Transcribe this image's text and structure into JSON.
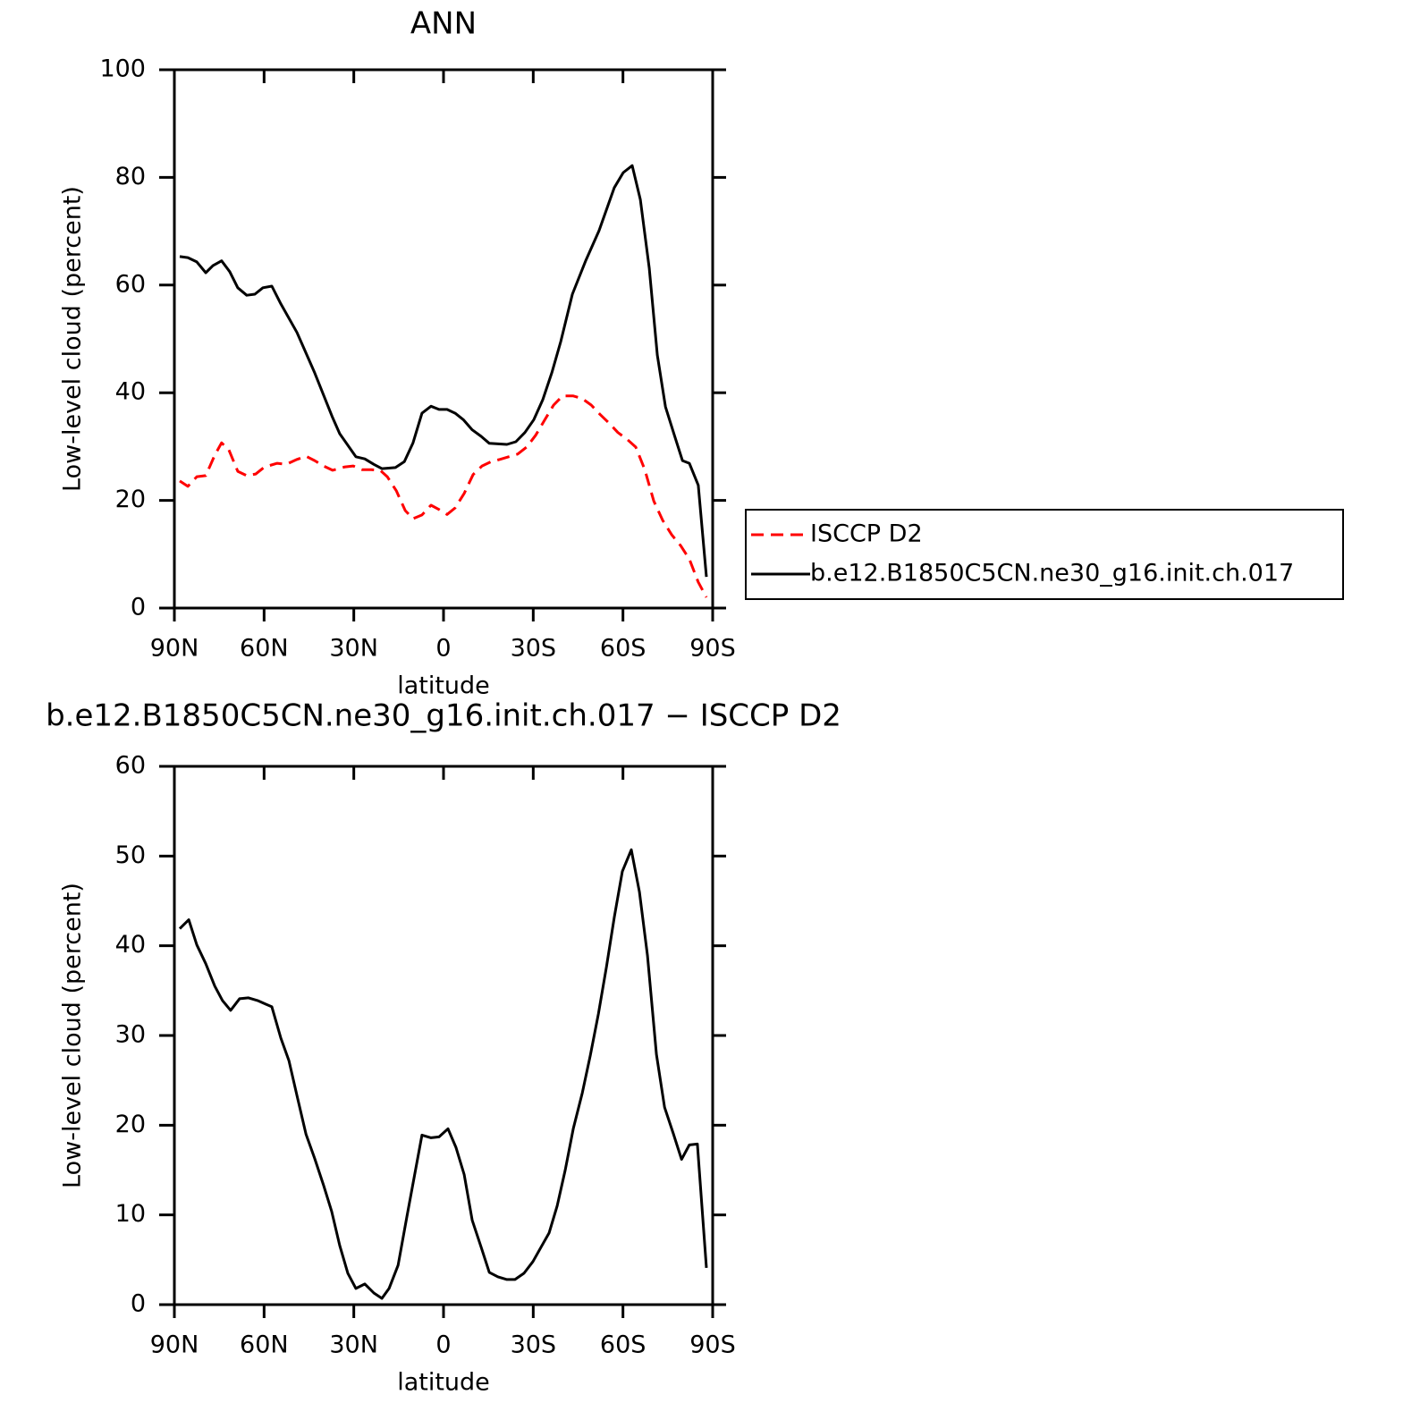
{
  "chart_data": [
    {
      "type": "line",
      "title": "ANN",
      "xlabel": "latitude",
      "ylabel": "Low-level cloud (percent)",
      "xlim": [
        90,
        -90
      ],
      "ylim": [
        0,
        100
      ],
      "xticks": [
        {
          "value": 90,
          "label": "90N"
        },
        {
          "value": 60,
          "label": "60N"
        },
        {
          "value": 30,
          "label": "30N"
        },
        0,
        {
          "value": -30,
          "label": "30S"
        },
        {
          "value": -60,
          "label": "60S"
        },
        {
          "value": -90,
          "label": "90S"
        }
      ],
      "yticks": [
        0,
        20,
        40,
        60,
        80,
        100
      ],
      "legend": "right",
      "series": [
        {
          "name": "ISCCP D2",
          "color": "#ff0000",
          "dashed": true,
          "x": [
            88.2,
            85.5,
            82.5,
            79.5,
            76.5,
            74.2,
            71.8,
            68.8,
            65.8,
            62.8,
            59.9,
            55.6,
            52.6,
            49.0,
            46.0,
            43.1,
            40.1,
            37.1,
            33.2,
            30.2,
            27.2,
            24.2,
            21.2,
            18.8,
            15.8,
            12.8,
            10.2,
            7.2,
            4.2,
            1.5,
            -1.2,
            -3.9,
            -6.9,
            -9.9,
            -12.9,
            -15.9,
            -18.8,
            -21.8,
            -24.8,
            -27.8,
            -30.8,
            -33.8,
            -36.8,
            -39.8,
            -43.4,
            -46.4,
            -49.4,
            -52.3,
            -55.3,
            -58.3,
            -61.3,
            -64.3,
            -67.3,
            -70.3,
            -73.3,
            -76.3,
            -79.3,
            -82.2,
            -85.2,
            -87.9
          ],
          "values": [
            23.6,
            22.6,
            24.4,
            24.6,
            28.4,
            30.7,
            29.4,
            25.4,
            24.6,
            24.9,
            26.2,
            26.9,
            26.7,
            27.6,
            28.2,
            27.4,
            26.4,
            25.6,
            26.2,
            26.4,
            25.7,
            25.7,
            25.6,
            24.4,
            21.8,
            18.1,
            16.6,
            17.3,
            19.1,
            18.3,
            17.4,
            18.6,
            21.3,
            24.8,
            26.4,
            27.2,
            27.6,
            28.1,
            28.6,
            29.9,
            32.1,
            34.9,
            37.7,
            39.4,
            39.4,
            38.9,
            37.7,
            36.0,
            34.4,
            32.6,
            31.4,
            29.9,
            25.7,
            19.9,
            16.3,
            13.6,
            11.6,
            9.1,
            4.8,
            2.0
          ]
        },
        {
          "name": "b.e12.B1850C5CN.ne30_g16.init.ch.017",
          "color": "#000000",
          "dashed": false,
          "x": [
            88.2,
            85.5,
            82.5,
            79.5,
            77.1,
            74.2,
            71.5,
            68.8,
            65.8,
            63.1,
            60.4,
            57.4,
            54.4,
            49.0,
            43.1,
            37.1,
            34.7,
            29.3,
            26.3,
            23.3,
            20.6,
            16.1,
            13.1,
            10.2,
            7.2,
            4.2,
            1.5,
            -1.2,
            -3.9,
            -6.6,
            -9.6,
            -12.6,
            -15.3,
            -21.2,
            -24.2,
            -27.2,
            -30.2,
            -33.2,
            -36.2,
            -39.2,
            -43.1,
            -47.6,
            -52.0,
            -57.1,
            -60.1,
            -63.1,
            -65.8,
            -68.8,
            -71.5,
            -74.2,
            -77.2,
            -79.9,
            -82.2,
            -85.2,
            -87.9
          ],
          "values": [
            65.3,
            65.1,
            64.3,
            62.3,
            63.6,
            64.5,
            62.5,
            59.5,
            58.1,
            58.3,
            59.5,
            59.8,
            56.5,
            51.2,
            43.7,
            35.4,
            32.4,
            28.1,
            27.7,
            26.7,
            25.9,
            26.1,
            27.2,
            30.7,
            36.2,
            37.5,
            36.9,
            36.9,
            36.2,
            35.0,
            33.1,
            31.9,
            30.6,
            30.4,
            30.9,
            32.6,
            35.0,
            38.7,
            43.7,
            49.5,
            58.3,
            64.6,
            70.1,
            78.1,
            80.9,
            82.2,
            75.9,
            63.1,
            47.0,
            37.4,
            32.1,
            27.4,
            26.9,
            22.8,
            5.8
          ]
        }
      ]
    },
    {
      "type": "line",
      "title": "b.e12.B1850C5CN.ne30_g16.init.ch.017 − ISCCP D2",
      "xlabel": "latitude",
      "ylabel": "Low-level cloud (percent)",
      "xlim": [
        90,
        -90
      ],
      "ylim": [
        0,
        60
      ],
      "xticks": [
        {
          "value": 90,
          "label": "90N"
        },
        {
          "value": 60,
          "label": "60N"
        },
        {
          "value": 30,
          "label": "30N"
        },
        0,
        {
          "value": -30,
          "label": "30S"
        },
        {
          "value": -60,
          "label": "60S"
        },
        {
          "value": -90,
          "label": "90S"
        }
      ],
      "yticks": [
        0,
        10,
        20,
        30,
        40,
        50,
        60
      ],
      "series": [
        {
          "color": "#000000",
          "dashed": false,
          "x": [
            88.2,
            85.2,
            82.5,
            79.5,
            76.5,
            73.9,
            71.2,
            68.2,
            65.2,
            62.2,
            59.5,
            57.4,
            54.4,
            51.7,
            49.0,
            46.0,
            43.1,
            40.1,
            37.4,
            34.7,
            32.0,
            29.3,
            26.3,
            23.3,
            20.6,
            18.2,
            15.2,
            12.2,
            7.2,
            4.2,
            1.5,
            -1.5,
            -4.2,
            -6.9,
            -9.6,
            -12.6,
            -15.3,
            -18.2,
            -21.2,
            -23.9,
            -26.9,
            -29.9,
            -32.6,
            -35.3,
            -38.0,
            -40.7,
            -43.4,
            -46.4,
            -49.1,
            -51.8,
            -54.5,
            -57.1,
            -59.8,
            -62.8,
            -65.5,
            -68.2,
            -71.2,
            -73.9,
            -76.9,
            -79.6,
            -82.2,
            -84.9,
            -87.9
          ],
          "values": [
            41.9,
            42.9,
            40.1,
            38.0,
            35.5,
            33.9,
            32.8,
            34.1,
            34.2,
            33.9,
            33.5,
            33.2,
            29.7,
            27.2,
            23.3,
            19.0,
            16.3,
            13.3,
            10.4,
            6.6,
            3.5,
            1.8,
            2.3,
            1.3,
            0.7,
            1.8,
            4.4,
            9.9,
            18.9,
            18.6,
            18.7,
            19.6,
            17.5,
            14.5,
            9.4,
            6.4,
            3.6,
            3.1,
            2.8,
            2.8,
            3.5,
            4.8,
            6.4,
            8.0,
            11.0,
            15.0,
            19.6,
            23.6,
            27.8,
            32.4,
            37.7,
            43.2,
            48.3,
            50.7,
            46.0,
            38.9,
            27.9,
            22.0,
            19.0,
            16.2,
            17.8,
            17.9,
            4.1
          ]
        }
      ]
    }
  ]
}
